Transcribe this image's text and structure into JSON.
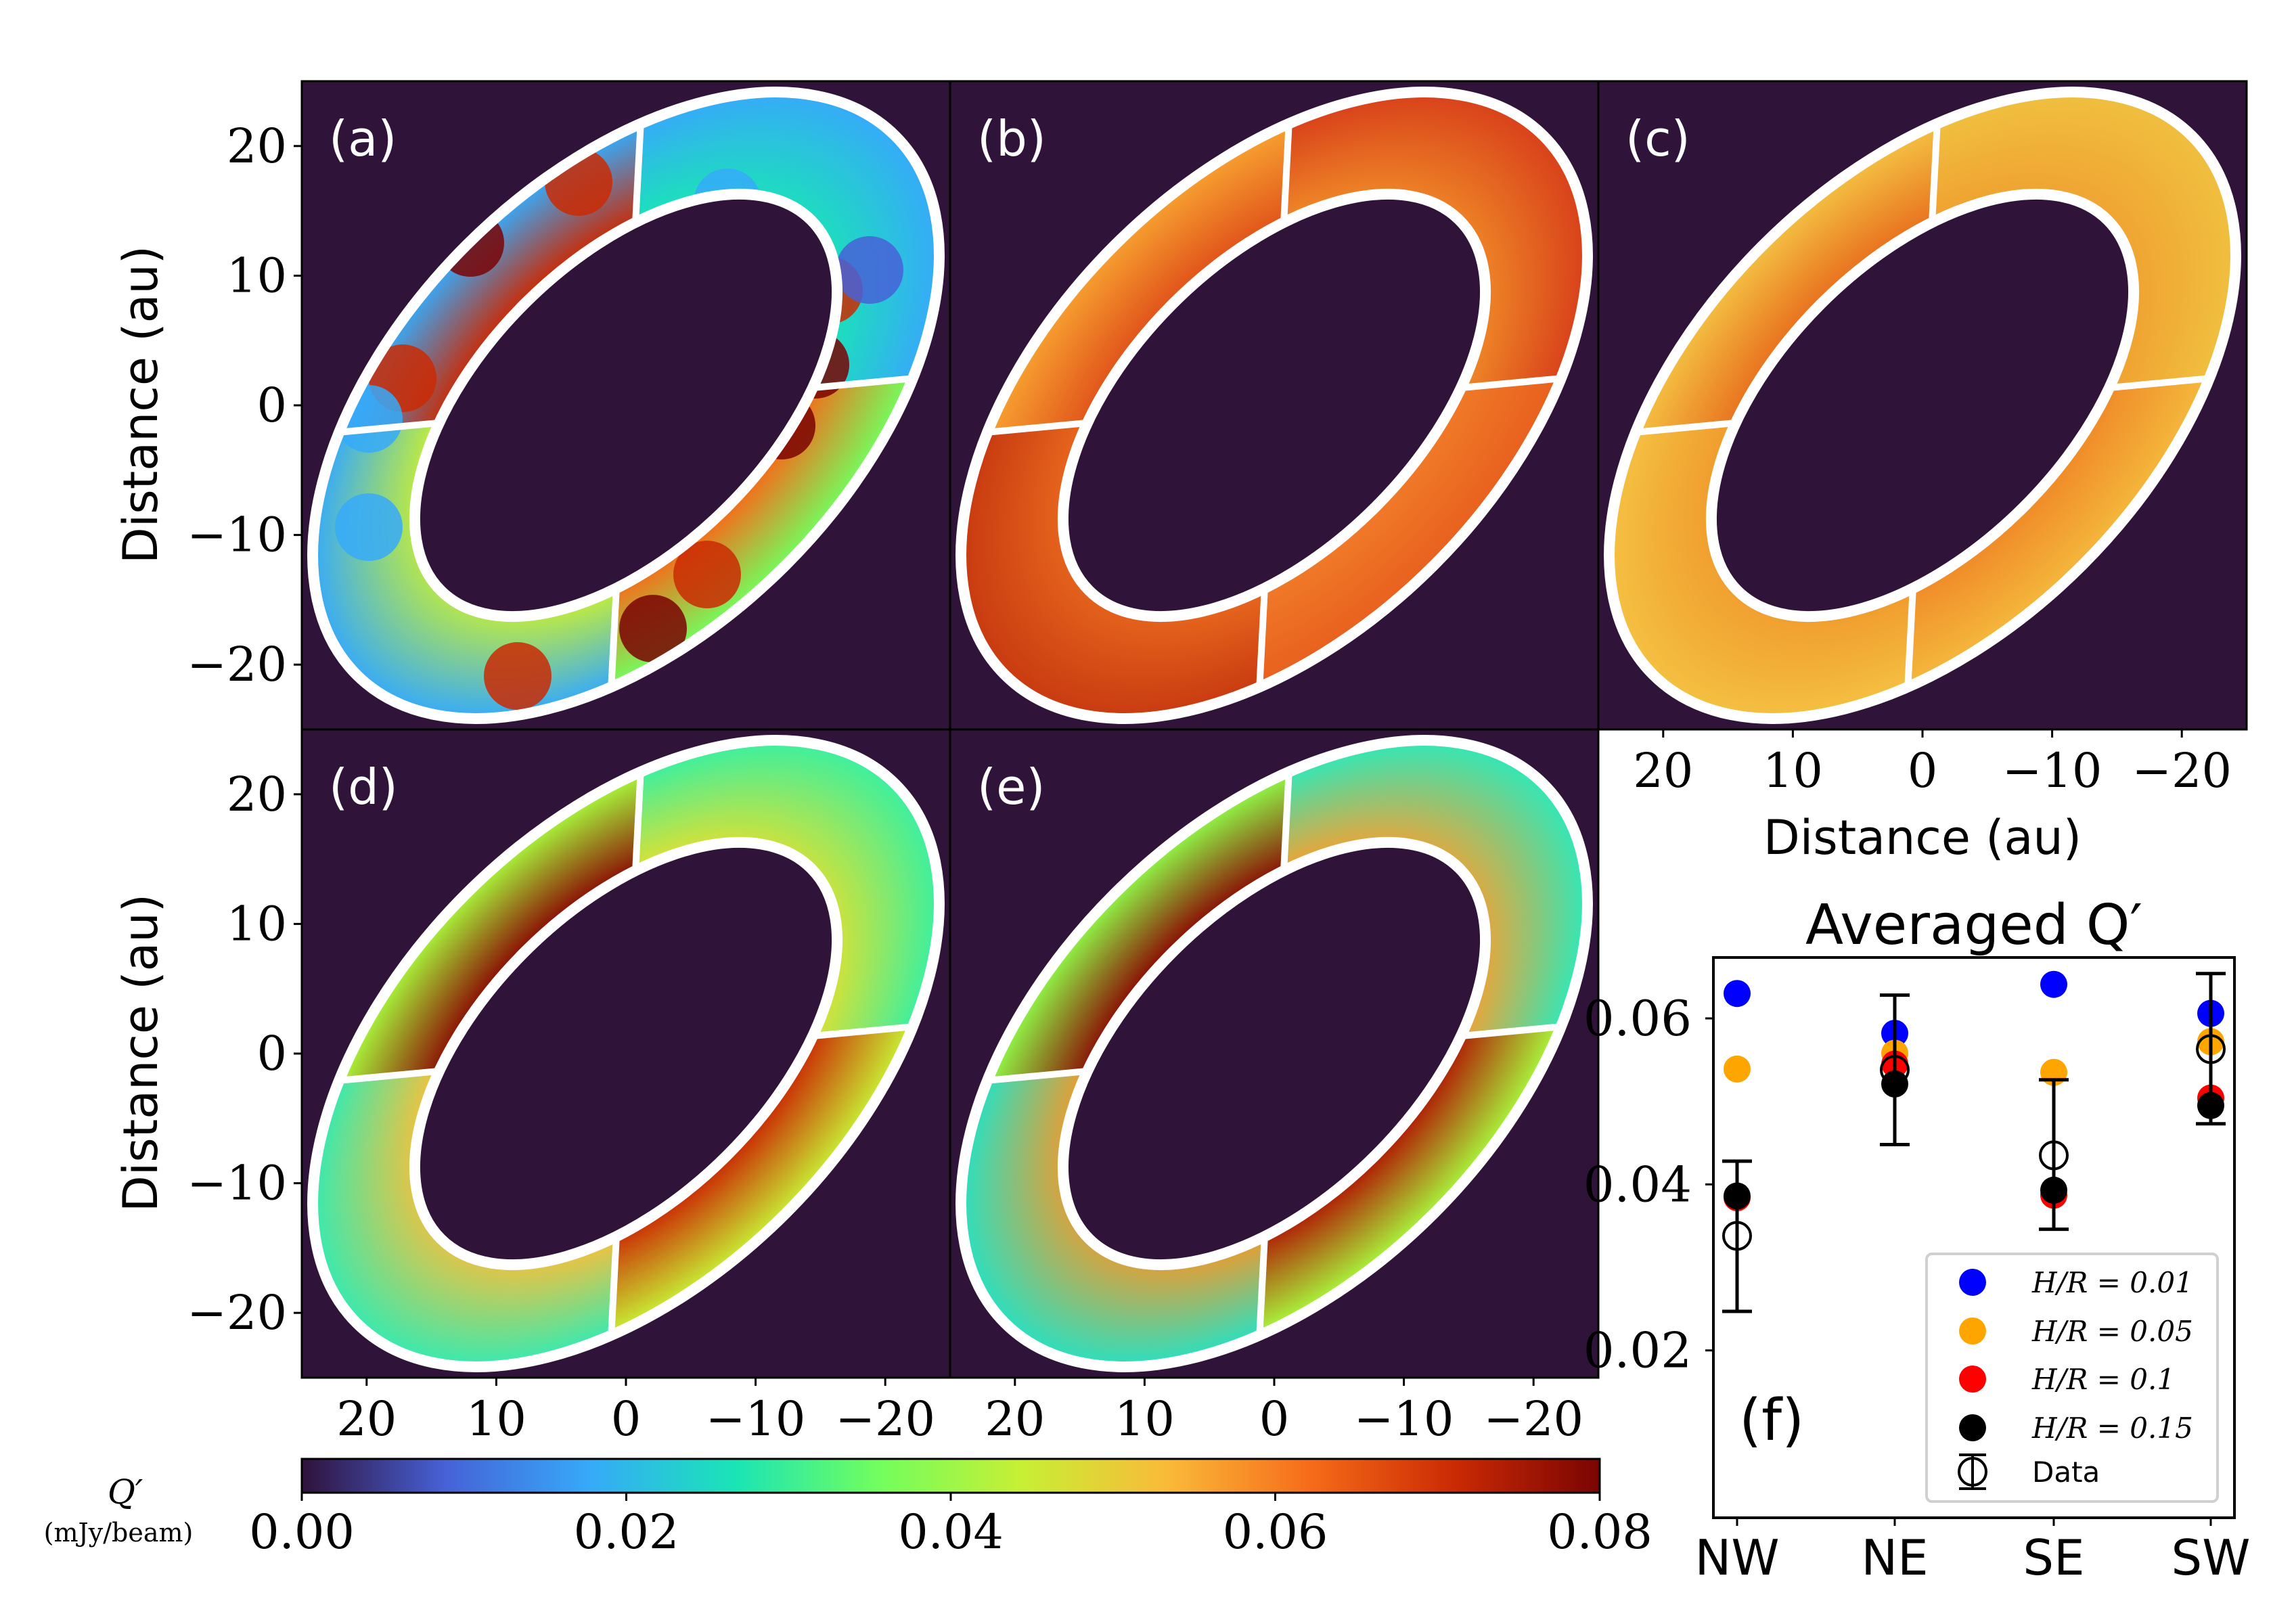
{
  "chart_data": [
    {
      "type": "heatmap",
      "panels": [
        {
          "label": "(a)",
          "segments": {
            "NE": [
              "#ca2a04",
              "#36aaf9"
            ],
            "NW": [
              "#1ae4b6",
              "#36aaf9"
            ],
            "SW": [
              "#f66b19",
              "#72fe5e"
            ],
            "SE": [
              "#c8ef34",
              "#36aaf9"
            ]
          }
        },
        {
          "label": "(b)",
          "segments": {
            "NE": [
              "#e0521a",
              "#f7a030"
            ],
            "NW": [
              "#f08a28",
              "#d8401a"
            ],
            "SW": [
              "#f07a28",
              "#e8601e"
            ],
            "SE": [
              "#e8681e",
              "#c83a10"
            ]
          }
        },
        {
          "label": "(c)",
          "segments": {
            "NE": [
              "#e8701e",
              "#f4c042"
            ],
            "NW": [
              "#f0a030",
              "#f0c040"
            ],
            "SW": [
              "#f08a28",
              "#f4b83c"
            ],
            "SE": [
              "#f09a2c",
              "#f4c042"
            ]
          }
        },
        {
          "label": "(d)",
          "segments": {
            "NE": [
              "#8a0a03",
              "#a8f83c"
            ],
            "NW": [
              "#e0e030",
              "#3af0a0"
            ],
            "SW": [
              "#ca2a04",
              "#c8ef34"
            ],
            "SE": [
              "#f8c03a",
              "#38eab0"
            ]
          }
        },
        {
          "label": "(e)",
          "segments": {
            "NE": [
              "#8a0a03",
              "#90fa48"
            ],
            "NW": [
              "#f6a030",
              "#30e8b8"
            ],
            "SW": [
              "#b01a04",
              "#a8f83c"
            ],
            "SE": [
              "#f09a2c",
              "#2ae0c0"
            ]
          }
        }
      ],
      "xlabel": "Distance (au)",
      "ylabel": "Distance (au)",
      "xlim": [
        25,
        -25
      ],
      "ylim": [
        -25,
        25
      ],
      "xticks": [
        "20",
        "10",
        "0",
        "−10",
        "−20"
      ],
      "xtick_values": [
        20,
        10,
        0,
        -10,
        -20
      ],
      "yticks": [
        "20",
        "10",
        "0",
        "−10",
        "−20"
      ],
      "ytick_values": [
        20,
        10,
        0,
        -10,
        -20
      ],
      "colorbar": {
        "label": "Q′",
        "unit": "(mJy/beam)",
        "range": [
          0,
          0.08
        ],
        "ticks": [
          "0.00",
          "0.02",
          "0.04",
          "0.06",
          "0.08"
        ],
        "tick_values": [
          0,
          0.02,
          0.04,
          0.06,
          0.08
        ],
        "colormap": [
          "#30123b",
          "#4662d7",
          "#36aaf9",
          "#1ae4b6",
          "#72fe5e",
          "#c8ef34",
          "#faba39",
          "#f66b19",
          "#ca2a04",
          "#7a0403"
        ]
      },
      "background": "#2f1339"
    },
    {
      "type": "scatter",
      "title": "Averaged Q′",
      "panel_label": "(f)",
      "categories": [
        "NW",
        "NE",
        "SE",
        "SW"
      ],
      "ylim": [
        0,
        0.0673
      ],
      "yticks": [
        "0.02",
        "0.04",
        "0.06"
      ],
      "ytick_values": [
        0.02,
        0.04,
        0.06
      ],
      "series": [
        {
          "name": "H/R = 0.01",
          "color": "#0000ff",
          "values": [
            0.063,
            0.0582,
            0.0641,
            0.0606
          ]
        },
        {
          "name": "H/R = 0.05",
          "color": "#ffa500",
          "values": [
            0.0539,
            0.0558,
            0.0535,
            0.0572
          ]
        },
        {
          "name": "H/R = 0.1",
          "color": "#ff0000",
          "values": [
            0.0384,
            0.0545,
            0.0387,
            0.0504
          ]
        },
        {
          "name": "H/R = 0.15",
          "color": "#000000",
          "values": [
            0.0386,
            0.0521,
            0.0393,
            0.0495
          ]
        }
      ],
      "data": {
        "name": "Data",
        "values": [
          0.0338,
          0.0538,
          0.0435,
          0.0563
        ],
        "err_low": [
          0.0247,
          0.0448,
          0.0346,
          0.0473
        ],
        "err_high": [
          0.0428,
          0.0628,
          0.0526,
          0.0654
        ]
      },
      "legend": "bottom-right"
    }
  ]
}
